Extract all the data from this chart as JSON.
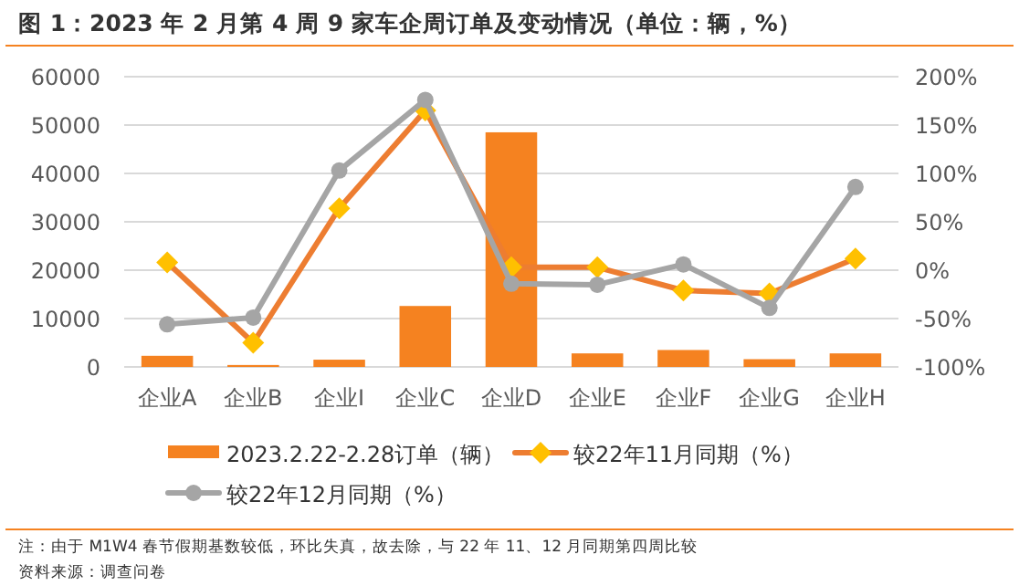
{
  "chart_data": {
    "type": "bar",
    "title": "图 1：2023 年 2 月第 4 周 9 家车企周订单及变动情况（单位：辆，%）",
    "categories": [
      "企业A",
      "企业B",
      "企业I",
      "企业C",
      "企业D",
      "企业E",
      "企业F",
      "企业G",
      "企业H"
    ],
    "series": [
      {
        "name": "2023.2.22-2.28订单（辆）",
        "color": "#f58220",
        "values": [
          2300,
          400,
          1500,
          12600,
          48500,
          2800,
          3500,
          1600,
          2800
        ]
      },
      {
        "name": "较22年11月同期（%）",
        "type": "line",
        "axis": "y2",
        "color": "#ed7d31",
        "marker": "diamond",
        "values": [
          8,
          -75,
          64,
          165,
          3,
          3,
          -21,
          -24,
          12
        ]
      },
      {
        "name": "较22年12月同期（%）",
        "type": "line",
        "axis": "y2",
        "color": "#a5a5a5",
        "marker": "circle",
        "values": [
          -56,
          -49,
          103,
          176,
          -14,
          -15,
          6,
          -39,
          86
        ]
      }
    ],
    "ylim": [
      0,
      60000
    ],
    "yticks": [
      0,
      10000,
      20000,
      30000,
      40000,
      50000,
      60000
    ],
    "y2lim": [
      -100,
      200
    ],
    "y2ticks": [
      {
        "value": -100,
        "label": "-100%"
      },
      {
        "value": -50,
        "label": "-50%"
      },
      {
        "value": 0,
        "label": "0%"
      },
      {
        "value": 50,
        "label": "50%"
      },
      {
        "value": 100,
        "label": "100%"
      },
      {
        "value": 150,
        "label": "150%"
      },
      {
        "value": 200,
        "label": "200%"
      }
    ],
    "grid": "y",
    "legend": "bottom",
    "annotations": [
      "注：由于 M1W4 春节假期基数较低，环比失真，故去除，与 22 年 11、12 月同期第四周比较",
      "资料来源：调查问卷"
    ]
  }
}
